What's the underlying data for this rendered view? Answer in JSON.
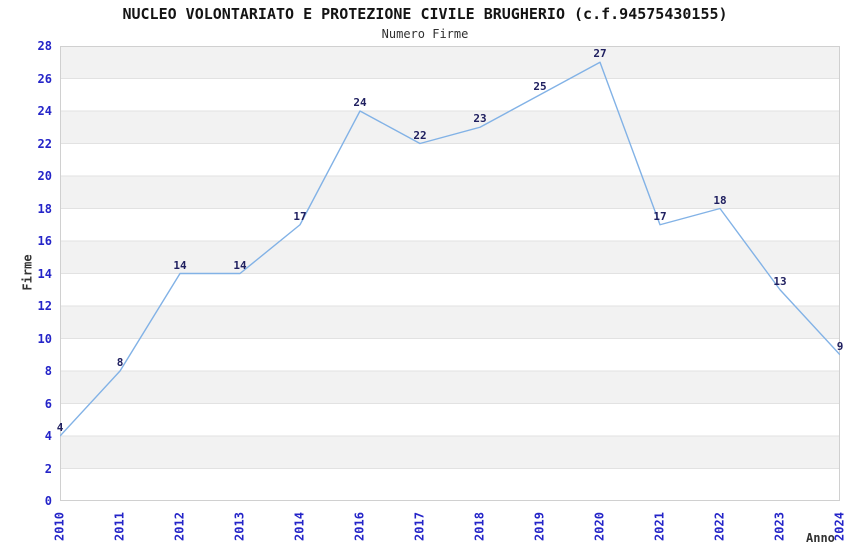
{
  "chart_data": {
    "type": "line",
    "title": "NUCLEO VOLONTARIATO E PROTEZIONE CIVILE BRUGHERIO (c.f.94575430155)",
    "subtitle": "Numero Firme",
    "xlabel": "Anno",
    "ylabel": "Firme",
    "categories": [
      "2010",
      "2011",
      "2012",
      "2013",
      "2014",
      "2016",
      "2017",
      "2018",
      "2019",
      "2020",
      "2021",
      "2022",
      "2023",
      "2024"
    ],
    "values": [
      4,
      8,
      14,
      14,
      17,
      24,
      22,
      23,
      25,
      27,
      17,
      18,
      13,
      9
    ],
    "point_labels": [
      "4",
      "8",
      "14",
      "14",
      "17",
      "24",
      "22",
      "23",
      "25",
      "27",
      "17",
      "18",
      "13",
      "9"
    ],
    "ylim": [
      0,
      28
    ],
    "ytick_step": 2,
    "yticks": [
      0,
      2,
      4,
      6,
      8,
      10,
      12,
      14,
      16,
      18,
      20,
      22,
      24,
      26,
      28
    ],
    "grid": true,
    "legend": "none",
    "band_fill_alternating": true,
    "colors": {
      "line": "#82b2e6",
      "point_label": "#202060",
      "tick_label": "#2424c8",
      "band": "#f2f2f2",
      "band_alt": "#ffffff",
      "gridline": "#e2e2e2",
      "plot_border": "#d0d0d0",
      "title": "#141414",
      "subtitle": "#303030",
      "axis_title": "#333333",
      "background": "#ffffff"
    }
  }
}
